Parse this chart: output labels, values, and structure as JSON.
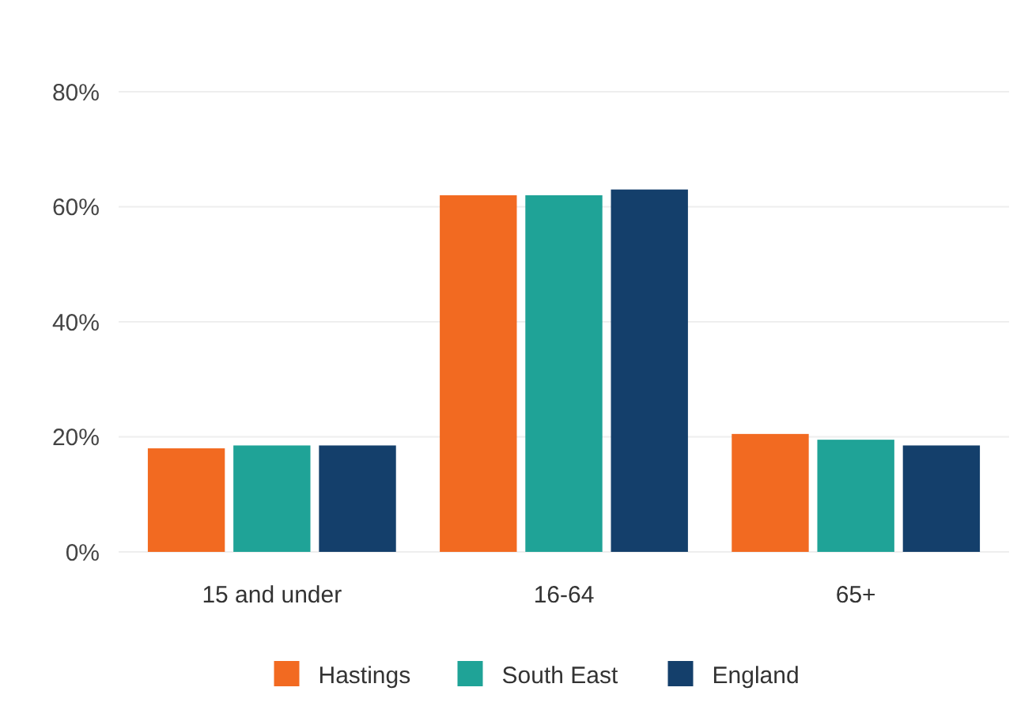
{
  "chart_data": {
    "type": "bar",
    "categories": [
      "15 and under",
      "16-64",
      "65+"
    ],
    "series": [
      {
        "name": "Hastings",
        "color": "#f26a21",
        "values": [
          18,
          62,
          20.5
        ]
      },
      {
        "name": "South East",
        "color": "#1fa397",
        "values": [
          18.5,
          62,
          19.5
        ]
      },
      {
        "name": "England",
        "color": "#143f6b",
        "values": [
          18.5,
          63,
          18.5
        ]
      }
    ],
    "ylim": [
      0,
      80
    ],
    "yticks": [
      {
        "value": 0,
        "label": "0%"
      },
      {
        "value": 20,
        "label": "20%"
      },
      {
        "value": 40,
        "label": "40%"
      },
      {
        "value": 60,
        "label": "60%"
      },
      {
        "value": 80,
        "label": "80%"
      }
    ],
    "grid": "y",
    "legend": "bottom"
  }
}
